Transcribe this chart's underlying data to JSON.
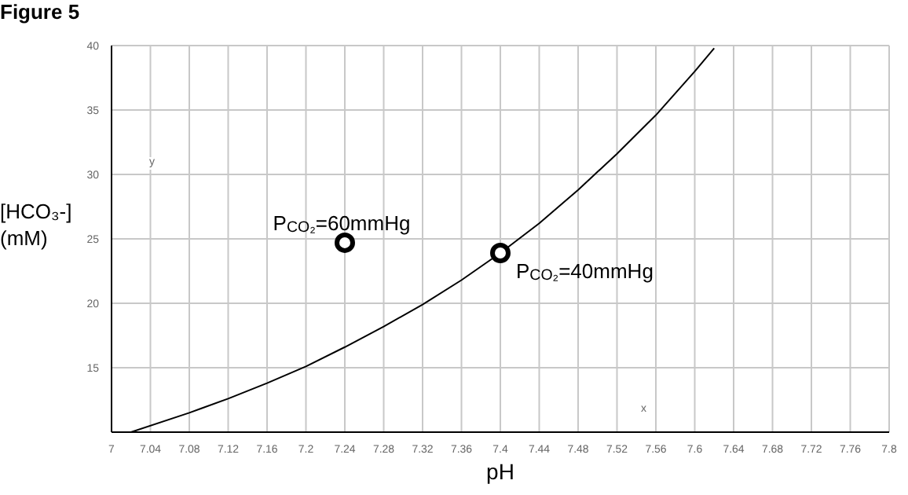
{
  "chart_data": {
    "type": "line",
    "title": "Figure 5",
    "xlabel": "pH",
    "ylabel": "[HCO₃-] (mM)",
    "xlim": [
      7,
      7.8
    ],
    "xticks": [
      7,
      7.04,
      7.08,
      7.12,
      7.16,
      7.2,
      7.24,
      7.28,
      7.32,
      7.36,
      7.4,
      7.44,
      7.48,
      7.52,
      7.56,
      7.6,
      7.64,
      7.68,
      7.72,
      7.76,
      7.8
    ],
    "ylim": [
      10,
      40
    ],
    "yticks": [
      15,
      20,
      25,
      30,
      35,
      40
    ],
    "grid": true,
    "legend": false,
    "series": [
      {
        "color": "#000000",
        "marker": "none",
        "x": [
          7.02,
          7.08,
          7.12,
          7.16,
          7.2,
          7.24,
          7.28,
          7.32,
          7.36,
          7.4,
          7.44,
          7.48,
          7.52,
          7.56,
          7.6,
          7.62
        ],
        "values": [
          10,
          11.5,
          12.6,
          13.8,
          15.1,
          16.6,
          18.2,
          19.9,
          21.8,
          23.9,
          26.2,
          28.8,
          31.6,
          34.6,
          38,
          39.8
        ]
      },
      {
        "type": "scatter",
        "color": "#000000",
        "marker": "circle",
        "x": [
          7.24,
          7.4
        ],
        "values": [
          24.7,
          23.9
        ]
      }
    ],
    "annotations": [
      {
        "text": "P$_{CO₂}$=60mmHg",
        "x": 7.24,
        "y": 24.7
      },
      {
        "text": "P$_{CO₂}$=40mmHg",
        "x": 7.4,
        "y": 23.9
      },
      "y",
      "x"
    ]
  }
}
